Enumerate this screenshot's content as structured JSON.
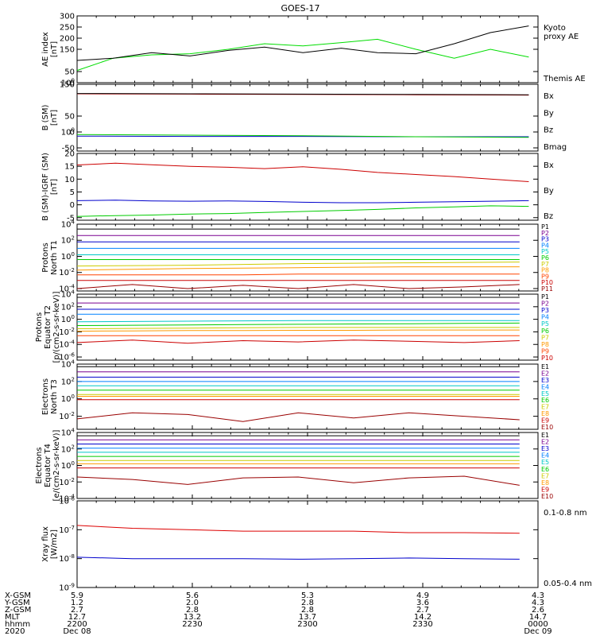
{
  "title": "GOES-17",
  "chart_data": [
    {
      "type": "line",
      "ylabel": [
        "AE index",
        "[nT]"
      ],
      "ylim": [
        0,
        300
      ],
      "yticks": [
        "0",
        "50",
        "100",
        "150",
        "200",
        "250",
        "300"
      ],
      "yscale": "linear",
      "x_hours": [
        0.0,
        0.16,
        0.33,
        0.5,
        0.67,
        0.83,
        1.0,
        1.17,
        1.33,
        1.5,
        1.67,
        1.83,
        2.0
      ],
      "series": [
        {
          "name": "Kyoto proxy AE",
          "color": "#00dd00",
          "values": [
            55,
            110,
            125,
            130,
            150,
            175,
            165,
            180,
            195,
            150,
            110,
            150,
            115
          ]
        },
        {
          "name": "Themis AE",
          "color": "#000000",
          "values": [
            100,
            110,
            135,
            120,
            145,
            160,
            135,
            155,
            135,
            130,
            175,
            225,
            255
          ]
        }
      ]
    },
    {
      "type": "line",
      "ylabel": [
        "B (SM)",
        "[nT]"
      ],
      "ylim": [
        -60,
        150
      ],
      "yticks": [
        "-50",
        "0",
        "50",
        "100",
        "150"
      ],
      "yscale": "linear",
      "x_hours": [
        0.0,
        0.5,
        1.0,
        1.5,
        2.0
      ],
      "series": [
        {
          "name": "Bx",
          "color": "#0000cc",
          "values": [
            -13,
            -14,
            -14,
            -15,
            -15
          ]
        },
        {
          "name": "By",
          "color": "#00cc00",
          "values": [
            -8,
            -10,
            -12,
            -15,
            -17
          ]
        },
        {
          "name": "Bz",
          "color": "#cc0000",
          "values": [
            120,
            119,
            118,
            117,
            116
          ]
        },
        {
          "name": "Bmag",
          "color": "#000000",
          "values": [
            121,
            120,
            119,
            118,
            117
          ]
        }
      ]
    },
    {
      "type": "line",
      "ylabel": [
        "B (SM)-IGRF (SM)",
        "[nT]"
      ],
      "ylim": [
        -6,
        20
      ],
      "yticks": [
        "-5",
        "0",
        "5",
        "10",
        "15",
        "20"
      ],
      "yscale": "linear",
      "x_hours": [
        0.0,
        0.17,
        0.33,
        0.5,
        0.67,
        0.83,
        1.0,
        1.17,
        1.33,
        1.5,
        1.67,
        1.83,
        2.0
      ],
      "series": [
        {
          "name": "Bx",
          "color": "#0000cc",
          "values": [
            1.6,
            1.8,
            1.5,
            1.4,
            1.5,
            1.3,
            1.0,
            0.8,
            0.8,
            1.0,
            1.2,
            1.4,
            1.6
          ]
        },
        {
          "name": "By",
          "color": "#00cc00",
          "values": [
            -4.5,
            -4.2,
            -4.0,
            -3.6,
            -3.4,
            -3.0,
            -2.6,
            -2.2,
            -1.8,
            -1.2,
            -0.8,
            -0.4,
            -0.6
          ]
        },
        {
          "name": "Bz",
          "color": "#cc0000",
          "values": [
            15.5,
            16.2,
            15.6,
            15.0,
            14.6,
            14.1,
            14.8,
            13.8,
            12.6,
            11.8,
            11.0,
            10.0,
            9.0
          ]
        }
      ]
    },
    {
      "type": "line",
      "ylabel": [
        "Protons",
        "North T1"
      ],
      "ylim": [
        -4.3,
        4
      ],
      "yticks": [
        "10-4",
        "10-2",
        "100",
        "102",
        "104"
      ],
      "yscale": "log",
      "x_hours": [
        0.0,
        0.25,
        0.5,
        0.75,
        1.0,
        1.25,
        1.5,
        1.75,
        2.0
      ],
      "series": [
        {
          "name": "P1",
          "color": "#000000",
          "values": [
            3.4,
            3.4,
            3.4,
            3.4,
            3.4,
            3.4,
            3.4,
            3.4,
            3.4
          ]
        },
        {
          "name": "P2",
          "color": "#7a0090",
          "values": [
            2.6,
            2.6,
            2.6,
            2.6,
            2.6,
            2.6,
            2.6,
            2.6,
            2.6
          ]
        },
        {
          "name": "P3",
          "color": "#0000cc",
          "values": [
            1.8,
            1.8,
            1.8,
            1.8,
            1.8,
            1.8,
            1.8,
            1.8,
            1.8
          ]
        },
        {
          "name": "P4",
          "color": "#0080ff",
          "values": [
            1.0,
            1.0,
            1.0,
            1.0,
            1.0,
            1.0,
            1.0,
            1.0,
            1.0
          ]
        },
        {
          "name": "P5",
          "color": "#00c8c8",
          "values": [
            0.2,
            0.2,
            0.2,
            0.2,
            0.2,
            0.2,
            0.2,
            0.2,
            0.2
          ]
        },
        {
          "name": "P6",
          "color": "#00cc00",
          "values": [
            -0.4,
            -0.4,
            -0.4,
            -0.4,
            -0.4,
            -0.4,
            -0.4,
            -0.4,
            -0.4
          ]
        },
        {
          "name": "P7",
          "color": "#cccc00",
          "values": [
            -1.2,
            -1.15,
            -1.1,
            -1.0,
            -0.9,
            -0.85,
            -0.8,
            -0.75,
            -0.7
          ]
        },
        {
          "name": "P8",
          "color": "#ff9900",
          "values": [
            -1.7,
            -1.6,
            -1.5,
            -1.45,
            -1.4,
            -1.35,
            -1.3,
            -1.3,
            -1.3
          ]
        },
        {
          "name": "P9",
          "color": "#ff4400",
          "values": [
            -2.3,
            -2.3,
            -2.3,
            -2.3,
            -2.2,
            -2.2,
            -2.2,
            -2.2,
            -2.2
          ]
        },
        {
          "name": "P10",
          "color": "#cc0000",
          "values": [
            -3.0,
            -3.0,
            -3.0,
            -3.0,
            -3.0,
            -3.0,
            -3.0,
            -3.0,
            -3.0
          ]
        },
        {
          "name": "P11",
          "color": "#990000",
          "values": [
            -4.0,
            -3.5,
            -4.0,
            -3.6,
            -4.0,
            -3.5,
            -4.0,
            -3.8,
            -3.5
          ]
        }
      ]
    },
    {
      "type": "line",
      "ylabel": [
        "Protons",
        "Equator T2",
        "[p/(cm2-s-sr-keV)]"
      ],
      "ylim": [
        -6.5,
        4
      ],
      "yticks": [
        "10-6",
        "10-4",
        "10-2",
        "100",
        "102",
        "104"
      ],
      "yscale": "log",
      "x_hours": [
        0.0,
        0.25,
        0.5,
        0.75,
        1.0,
        1.25,
        1.5,
        1.75,
        2.0
      ],
      "series": [
        {
          "name": "P1",
          "color": "#000000",
          "values": [
            3.5,
            3.5,
            3.5,
            3.5,
            3.5,
            3.5,
            3.5,
            3.5,
            3.5
          ]
        },
        {
          "name": "P2",
          "color": "#7a0090",
          "values": [
            2.6,
            2.6,
            2.6,
            2.6,
            2.6,
            2.6,
            2.6,
            2.6,
            2.6
          ]
        },
        {
          "name": "P3",
          "color": "#0000cc",
          "values": [
            1.6,
            1.6,
            1.6,
            1.6,
            1.6,
            1.6,
            1.6,
            1.6,
            1.6
          ]
        },
        {
          "name": "P4",
          "color": "#0080ff",
          "values": [
            0.8,
            0.8,
            0.8,
            0.8,
            0.8,
            0.8,
            0.8,
            0.8,
            0.8
          ]
        },
        {
          "name": "P5",
          "color": "#00c8c8",
          "values": [
            -0.4,
            -0.35,
            -0.3,
            -0.25,
            -0.2,
            -0.2,
            -0.2,
            -0.2,
            -0.2
          ]
        },
        {
          "name": "P6",
          "color": "#00cc00",
          "values": [
            -1.0,
            -0.95,
            -0.9,
            -0.85,
            -0.8,
            -0.75,
            -0.7,
            -0.65,
            -0.6
          ]
        },
        {
          "name": "P7",
          "color": "#cccc00",
          "values": [
            -1.5,
            -1.45,
            -1.4,
            -1.35,
            -1.3,
            -1.3,
            -1.3,
            -1.3,
            -1.3
          ]
        },
        {
          "name": "P8",
          "color": "#ff9900",
          "values": [
            -1.9,
            -1.85,
            -1.8,
            -1.8,
            -1.75,
            -1.75,
            -1.7,
            -1.7,
            -1.7
          ]
        },
        {
          "name": "P9",
          "color": "#ff4400",
          "values": [
            -2.6,
            -2.6,
            -2.6,
            -2.6,
            -2.6,
            -2.6,
            -2.6,
            -2.6,
            -2.6
          ]
        },
        {
          "name": "P10",
          "color": "#cc0000",
          "values": [
            -3.7,
            -3.3,
            -3.8,
            -3.4,
            -3.6,
            -3.3,
            -3.5,
            -3.7,
            -3.4
          ]
        }
      ]
    },
    {
      "type": "line",
      "ylabel": [
        "Electrons",
        "North T3"
      ],
      "ylim": [
        -3.5,
        4
      ],
      "yticks": [
        "10-2",
        "100",
        "102",
        "104"
      ],
      "yscale": "log",
      "x_hours": [
        0.0,
        0.25,
        0.5,
        0.75,
        1.0,
        1.25,
        1.5,
        1.75,
        2.0
      ],
      "series": [
        {
          "name": "E1",
          "color": "#000000",
          "values": [
            3.7,
            3.7,
            3.7,
            3.7,
            3.7,
            3.7,
            3.7,
            3.7,
            3.7
          ]
        },
        {
          "name": "E2",
          "color": "#7a0090",
          "values": [
            3.1,
            3.1,
            3.1,
            3.1,
            3.1,
            3.1,
            3.1,
            3.1,
            3.1
          ]
        },
        {
          "name": "E3",
          "color": "#0000cc",
          "values": [
            2.5,
            2.5,
            2.5,
            2.5,
            2.5,
            2.5,
            2.5,
            2.5,
            2.5
          ]
        },
        {
          "name": "E4",
          "color": "#0080ff",
          "values": [
            2.0,
            2.0,
            2.0,
            2.0,
            2.0,
            2.0,
            2.0,
            2.0,
            2.0
          ]
        },
        {
          "name": "E5",
          "color": "#00c8c8",
          "values": [
            1.5,
            1.5,
            1.5,
            1.5,
            1.5,
            1.5,
            1.5,
            1.5,
            1.5
          ]
        },
        {
          "name": "E6",
          "color": "#00cc00",
          "values": [
            1.0,
            1.0,
            1.0,
            1.0,
            1.0,
            1.0,
            1.0,
            1.0,
            1.0
          ]
        },
        {
          "name": "E7",
          "color": "#cccc00",
          "values": [
            0.5,
            0.5,
            0.5,
            0.5,
            0.5,
            0.5,
            0.5,
            0.5,
            0.5
          ]
        },
        {
          "name": "E8",
          "color": "#ff9900",
          "values": [
            0.3,
            0.3,
            0.3,
            0.3,
            0.3,
            0.3,
            0.3,
            0.3,
            0.3
          ]
        },
        {
          "name": "E9",
          "color": "#cc0000",
          "values": [
            -0.1,
            -0.1,
            -0.1,
            -0.1,
            -0.1,
            -0.1,
            -0.1,
            -0.1,
            -0.1
          ]
        },
        {
          "name": "E10",
          "color": "#990000",
          "values": [
            -2.3,
            -1.6,
            -1.8,
            -2.6,
            -1.6,
            -2.2,
            -1.6,
            -2.0,
            -2.4
          ]
        }
      ]
    },
    {
      "type": "line",
      "ylabel": [
        "Electrons",
        "Equator T4",
        "[e/(cm2-s-sr-keV)]"
      ],
      "ylim": [
        -4,
        4
      ],
      "yticks": [
        "10-4",
        "10-2",
        "100",
        "102",
        "104"
      ],
      "yscale": "log",
      "x_hours": [
        0.0,
        0.25,
        0.5,
        0.75,
        1.0,
        1.25,
        1.5,
        1.75,
        2.0
      ],
      "series": [
        {
          "name": "E1",
          "color": "#000000",
          "values": [
            3.6,
            3.6,
            3.6,
            3.6,
            3.6,
            3.6,
            3.6,
            3.6,
            3.6
          ]
        },
        {
          "name": "E2",
          "color": "#7a0090",
          "values": [
            3.1,
            3.1,
            3.1,
            3.1,
            3.1,
            3.1,
            3.1,
            3.1,
            3.1
          ]
        },
        {
          "name": "E3",
          "color": "#0000cc",
          "values": [
            2.6,
            2.6,
            2.6,
            2.6,
            2.6,
            2.6,
            2.6,
            2.6,
            2.6
          ]
        },
        {
          "name": "E4",
          "color": "#0080ff",
          "values": [
            2.1,
            2.1,
            2.1,
            2.1,
            2.1,
            2.1,
            2.1,
            2.1,
            2.1
          ]
        },
        {
          "name": "E5",
          "color": "#00c8c8",
          "values": [
            1.6,
            1.6,
            1.6,
            1.6,
            1.6,
            1.6,
            1.6,
            1.6,
            1.6
          ]
        },
        {
          "name": "E6",
          "color": "#00cc00",
          "values": [
            1.1,
            1.1,
            1.1,
            1.1,
            1.1,
            1.1,
            1.1,
            1.1,
            1.1
          ]
        },
        {
          "name": "E7",
          "color": "#cccc00",
          "values": [
            0.6,
            0.6,
            0.6,
            0.6,
            0.6,
            0.6,
            0.6,
            0.6,
            0.6
          ]
        },
        {
          "name": "E8",
          "color": "#ff9900",
          "values": [
            0.2,
            0.2,
            0.2,
            0.2,
            0.2,
            0.2,
            0.2,
            0.2,
            0.2
          ]
        },
        {
          "name": "E9",
          "color": "#cc0000",
          "values": [
            -0.3,
            -0.3,
            -0.3,
            -0.3,
            -0.3,
            -0.3,
            -0.3,
            -0.3,
            -0.3
          ]
        },
        {
          "name": "E10",
          "color": "#990000",
          "values": [
            -1.4,
            -1.7,
            -2.3,
            -1.5,
            -1.4,
            -2.1,
            -1.5,
            -1.3,
            -2.4
          ]
        }
      ]
    },
    {
      "type": "line",
      "ylabel": [
        "Xray flux",
        "[W/m2]"
      ],
      "ylim": [
        -9,
        -6
      ],
      "yticks": [
        "10-9",
        "10-8",
        "10-7",
        "10-6"
      ],
      "yscale": "log",
      "x_hours": [
        0.0,
        0.25,
        0.5,
        0.75,
        1.0,
        1.25,
        1.5,
        1.75,
        2.0
      ],
      "series": [
        {
          "name": "0.1-0.8 nm",
          "color": "#dd0000",
          "values": [
            -6.85,
            -6.95,
            -7.0,
            -7.05,
            -7.05,
            -7.05,
            -7.1,
            -7.1,
            -7.12
          ]
        },
        {
          "name": "0.05-0.4 nm",
          "color": "#0000cc",
          "values": [
            -7.95,
            -8.0,
            -8.0,
            -8.0,
            -8.02,
            -8.0,
            -7.98,
            -8.0,
            -8.02
          ]
        }
      ]
    }
  ],
  "x_axis": {
    "labels": [
      {
        "hours": 0.0,
        "text": "2200"
      },
      {
        "hours": 0.5,
        "text": "2230"
      },
      {
        "hours": 1.0,
        "text": "2300"
      },
      {
        "hours": 1.5,
        "text": "2330"
      },
      {
        "hours": 2.0,
        "text": "0000"
      }
    ]
  },
  "ephemeris": {
    "row_labels": [
      "X-GSM",
      "Y-GSM",
      "Z-GSM",
      "MLT",
      "hhmm",
      "2020"
    ],
    "columns": [
      [
        "5.9",
        "1.2",
        "2.7",
        "12.7",
        "2200",
        "Dec 08"
      ],
      [
        "5.6",
        "2.0",
        "2.8",
        "13.2",
        "2230",
        ""
      ],
      [
        "5.3",
        "2.8",
        "2.8",
        "13.7",
        "2300",
        ""
      ],
      [
        "4.9",
        "3.6",
        "2.7",
        "14.2",
        "2330",
        ""
      ],
      [
        "4.3",
        "4.3",
        "2.6",
        "14.7",
        "0000",
        "Dec 09"
      ]
    ]
  }
}
